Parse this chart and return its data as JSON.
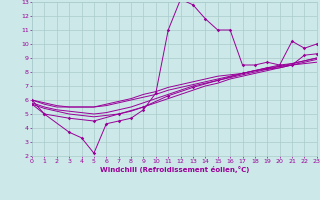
{
  "xlabel": "Windchill (Refroidissement éolien,°C)",
  "xlim": [
    0,
    23
  ],
  "ylim": [
    2,
    13
  ],
  "xticks": [
    0,
    1,
    2,
    3,
    4,
    5,
    6,
    7,
    8,
    9,
    10,
    11,
    12,
    13,
    14,
    15,
    16,
    17,
    18,
    19,
    20,
    21,
    22,
    23
  ],
  "yticks": [
    2,
    3,
    4,
    5,
    6,
    7,
    8,
    9,
    10,
    11,
    12,
    13
  ],
  "bg_color": "#cce8e8",
  "grid_color": "#aacccc",
  "line_color": "#990099",
  "series": {
    "s1": [
      [
        0,
        6.0
      ],
      [
        1,
        5.0
      ],
      [
        3,
        3.7
      ],
      [
        4,
        3.3
      ],
      [
        5,
        2.2
      ],
      [
        6,
        4.3
      ],
      [
        7,
        4.5
      ],
      [
        8,
        4.7
      ],
      [
        9,
        5.3
      ],
      [
        10,
        6.5
      ],
      [
        11,
        11.0
      ],
      [
        12,
        13.2
      ],
      [
        13,
        12.8
      ],
      [
        14,
        11.8
      ],
      [
        15,
        11.0
      ],
      [
        16,
        11.0
      ],
      [
        17,
        8.5
      ],
      [
        18,
        8.5
      ],
      [
        19,
        8.7
      ],
      [
        20,
        8.5
      ],
      [
        21,
        10.2
      ],
      [
        22,
        9.7
      ],
      [
        23,
        10.0
      ]
    ],
    "s2": [
      [
        0,
        6.0
      ],
      [
        1,
        5.7
      ],
      [
        2,
        5.5
      ],
      [
        3,
        5.5
      ],
      [
        4,
        5.5
      ],
      [
        5,
        5.5
      ],
      [
        6,
        5.7
      ],
      [
        7,
        5.9
      ],
      [
        8,
        6.1
      ],
      [
        9,
        6.4
      ],
      [
        10,
        6.6
      ],
      [
        11,
        6.9
      ],
      [
        12,
        7.1
      ],
      [
        13,
        7.3
      ],
      [
        14,
        7.5
      ],
      [
        15,
        7.7
      ],
      [
        16,
        7.8
      ],
      [
        17,
        7.9
      ],
      [
        18,
        8.1
      ],
      [
        19,
        8.2
      ],
      [
        20,
        8.3
      ],
      [
        21,
        8.5
      ],
      [
        22,
        8.6
      ],
      [
        23,
        8.7
      ]
    ],
    "s3": [
      [
        0,
        6.0
      ],
      [
        1,
        5.8
      ],
      [
        2,
        5.6
      ],
      [
        3,
        5.5
      ],
      [
        4,
        5.5
      ],
      [
        5,
        5.5
      ],
      [
        6,
        5.6
      ],
      [
        7,
        5.8
      ],
      [
        8,
        6.0
      ],
      [
        9,
        6.2
      ],
      [
        10,
        6.4
      ],
      [
        11,
        6.7
      ],
      [
        12,
        6.9
      ],
      [
        13,
        7.1
      ],
      [
        14,
        7.3
      ],
      [
        15,
        7.5
      ],
      [
        16,
        7.7
      ],
      [
        17,
        7.9
      ],
      [
        18,
        8.1
      ],
      [
        19,
        8.3
      ],
      [
        20,
        8.5
      ],
      [
        21,
        8.6
      ],
      [
        22,
        8.8
      ],
      [
        23,
        9.0
      ]
    ],
    "s4": [
      [
        0,
        5.8
      ],
      [
        1,
        5.5
      ],
      [
        2,
        5.3
      ],
      [
        3,
        5.2
      ],
      [
        4,
        5.1
      ],
      [
        5,
        5.0
      ],
      [
        6,
        5.1
      ],
      [
        7,
        5.3
      ],
      [
        8,
        5.5
      ],
      [
        9,
        5.8
      ],
      [
        10,
        6.1
      ],
      [
        11,
        6.4
      ],
      [
        12,
        6.7
      ],
      [
        13,
        7.0
      ],
      [
        14,
        7.2
      ],
      [
        15,
        7.4
      ],
      [
        16,
        7.6
      ],
      [
        17,
        7.8
      ],
      [
        18,
        8.0
      ],
      [
        19,
        8.2
      ],
      [
        20,
        8.4
      ],
      [
        21,
        8.6
      ],
      [
        22,
        8.8
      ],
      [
        23,
        9.0
      ]
    ],
    "s5": [
      [
        0,
        5.7
      ],
      [
        1,
        5.4
      ],
      [
        2,
        5.2
      ],
      [
        3,
        5.0
      ],
      [
        4,
        4.9
      ],
      [
        5,
        4.8
      ],
      [
        6,
        4.9
      ],
      [
        7,
        5.0
      ],
      [
        8,
        5.2
      ],
      [
        9,
        5.5
      ],
      [
        10,
        5.8
      ],
      [
        11,
        6.1
      ],
      [
        12,
        6.4
      ],
      [
        13,
        6.7
      ],
      [
        14,
        7.0
      ],
      [
        15,
        7.2
      ],
      [
        16,
        7.5
      ],
      [
        17,
        7.7
      ],
      [
        18,
        7.9
      ],
      [
        19,
        8.1
      ],
      [
        20,
        8.3
      ],
      [
        21,
        8.5
      ],
      [
        22,
        8.7
      ],
      [
        23,
        8.9
      ]
    ]
  },
  "s1_markers": [
    [
      0,
      6.0
    ],
    [
      1,
      5.0
    ],
    [
      3,
      3.7
    ],
    [
      4,
      3.3
    ],
    [
      5,
      2.2
    ],
    [
      6,
      4.3
    ],
    [
      7,
      4.5
    ],
    [
      8,
      4.7
    ],
    [
      9,
      5.3
    ],
    [
      10,
      6.5
    ],
    [
      11,
      11.0
    ],
    [
      12,
      13.2
    ],
    [
      13,
      12.8
    ],
    [
      14,
      11.8
    ],
    [
      15,
      11.0
    ],
    [
      16,
      11.0
    ],
    [
      17,
      8.5
    ],
    [
      18,
      8.5
    ],
    [
      19,
      8.7
    ],
    [
      20,
      8.5
    ],
    [
      21,
      10.2
    ],
    [
      22,
      9.7
    ],
    [
      23,
      10.0
    ]
  ],
  "s5_markers": [
    [
      0,
      5.7
    ],
    [
      1,
      5.0
    ],
    [
      3,
      4.7
    ],
    [
      5,
      4.5
    ],
    [
      7,
      5.0
    ],
    [
      9,
      5.5
    ],
    [
      11,
      6.3
    ],
    [
      13,
      6.9
    ],
    [
      15,
      7.4
    ],
    [
      17,
      7.9
    ],
    [
      19,
      8.3
    ],
    [
      21,
      8.5
    ],
    [
      22,
      9.2
    ],
    [
      23,
      9.3
    ]
  ]
}
